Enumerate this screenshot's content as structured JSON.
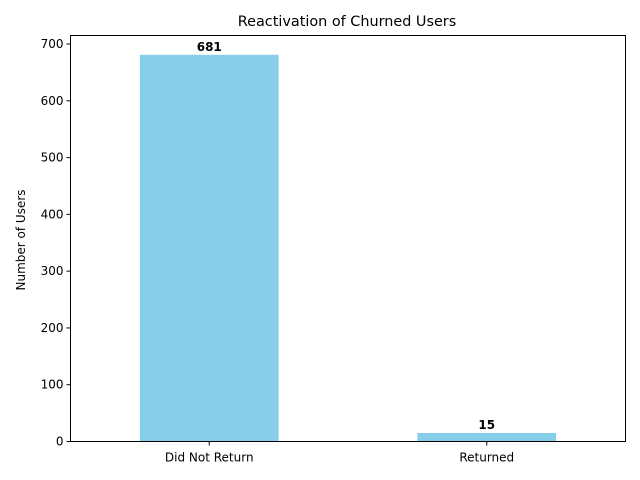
{
  "chart_data": {
    "type": "bar",
    "title": "Reactivation of Churned Users",
    "xlabel": "",
    "ylabel": "Number of Users",
    "categories": [
      "Did Not Return",
      "Returned"
    ],
    "values": [
      681,
      15
    ],
    "data_labels": [
      "681",
      "15"
    ],
    "ylim": [
      0,
      715
    ],
    "yticks": [
      0,
      100,
      200,
      300,
      400,
      500,
      600,
      700
    ],
    "ytick_labels": [
      "0",
      "100",
      "200",
      "300",
      "400",
      "500",
      "600",
      "700"
    ],
    "grid": false,
    "legend": "none",
    "bar_color": "#87CEEB"
  }
}
